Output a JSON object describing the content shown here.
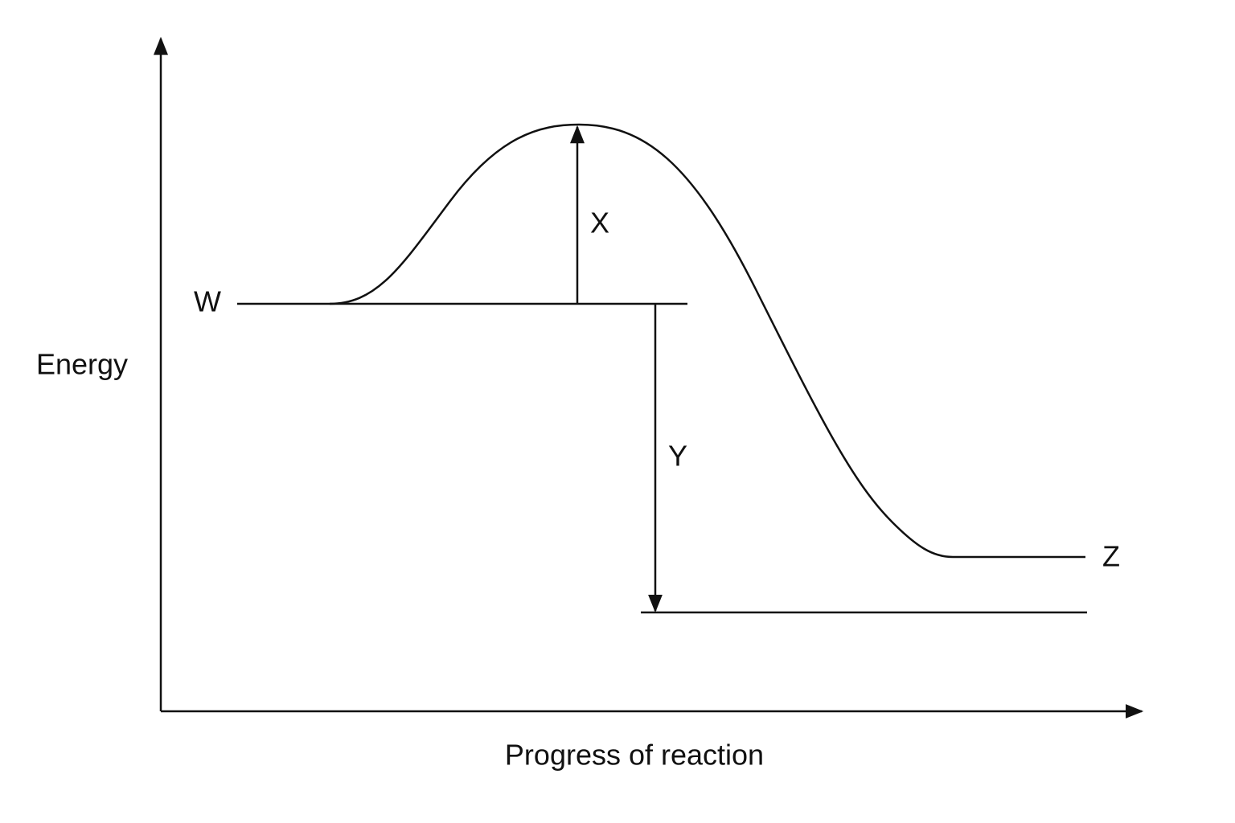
{
  "axes": {
    "y_label": "Energy",
    "x_label": "Progress of reaction"
  },
  "annotations": [
    "W",
    "X",
    "Y",
    "Z"
  ]
}
